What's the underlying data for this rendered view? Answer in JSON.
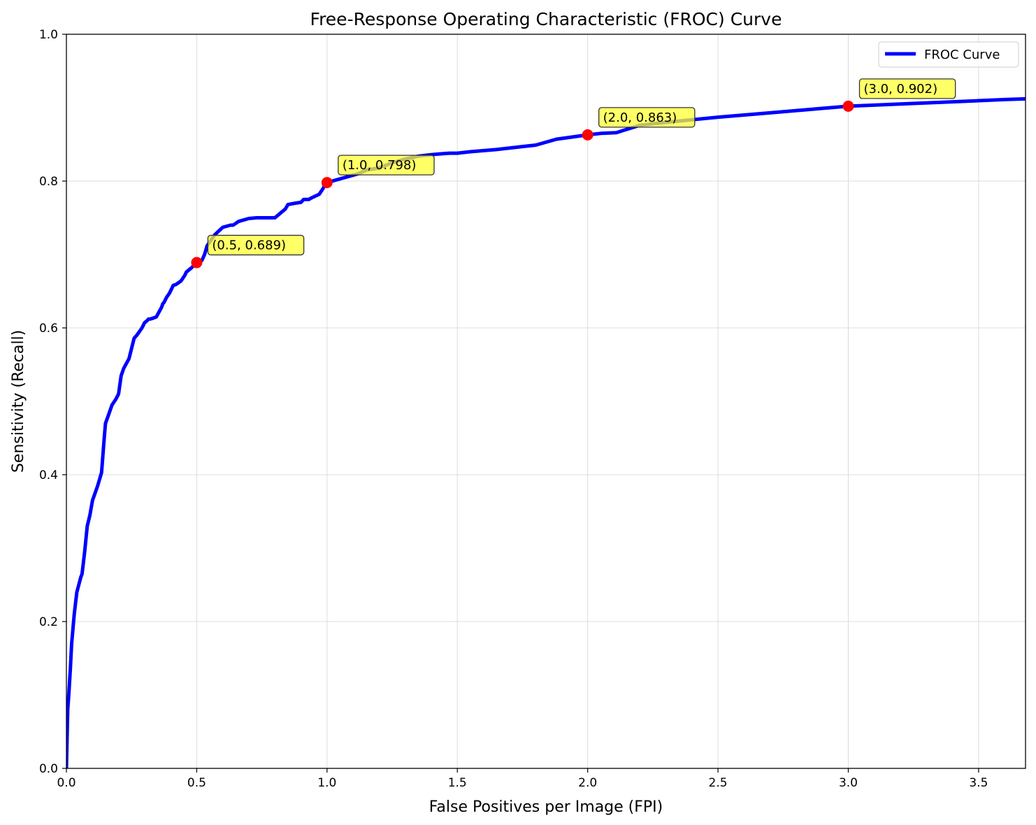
{
  "chart_data": {
    "type": "line",
    "title": "Free-Response Operating Characteristic (FROC) Curve",
    "xlabel": "False Positives per Image (FPI)",
    "ylabel": "Sensitivity (Recall)",
    "xlim": [
      0,
      3.68
    ],
    "ylim": [
      0,
      1.0
    ],
    "xticks": [
      0.0,
      0.5,
      1.0,
      1.5,
      2.0,
      2.5,
      3.0,
      3.5
    ],
    "xtick_labels": [
      "0.0",
      "0.5",
      "1.0",
      "1.5",
      "2.0",
      "2.5",
      "3.0",
      "3.5"
    ],
    "yticks": [
      0.0,
      0.2,
      0.4,
      0.6,
      0.8,
      1.0
    ],
    "ytick_labels": [
      "0.0",
      "0.2",
      "0.4",
      "0.6",
      "0.8",
      "1.0"
    ],
    "grid": true,
    "legend_position": "top-right",
    "series": [
      {
        "name": "FROC Curve",
        "color": "#0000ff",
        "x": [
          0.0,
          0.005,
          0.01,
          0.015,
          0.02,
          0.03,
          0.04,
          0.055,
          0.06,
          0.07,
          0.08,
          0.09,
          0.1,
          0.12,
          0.135,
          0.145,
          0.15,
          0.16,
          0.175,
          0.19,
          0.2,
          0.21,
          0.22,
          0.24,
          0.25,
          0.26,
          0.27,
          0.28,
          0.29,
          0.3,
          0.31,
          0.315,
          0.32,
          0.33,
          0.345,
          0.365,
          0.37,
          0.375,
          0.385,
          0.395,
          0.41,
          0.42,
          0.44,
          0.455,
          0.46,
          0.48,
          0.5,
          0.52,
          0.53,
          0.54,
          0.55,
          0.57,
          0.6,
          0.63,
          0.64,
          0.66,
          0.67,
          0.7,
          0.73,
          0.77,
          0.8,
          0.82,
          0.84,
          0.85,
          0.88,
          0.9,
          0.91,
          0.93,
          0.94,
          0.97,
          0.985,
          0.99,
          1.0,
          1.05,
          1.08,
          1.12,
          1.15,
          1.2,
          1.25,
          1.3,
          1.35,
          1.4,
          1.43,
          1.47,
          1.5,
          1.55,
          1.65,
          1.75,
          1.8,
          1.88,
          2.0,
          2.05,
          2.11,
          2.2,
          2.3,
          2.5,
          2.7,
          2.9,
          3.0,
          3.2,
          3.4,
          3.6,
          3.68
        ],
        "y": [
          0.0,
          0.08,
          0.105,
          0.135,
          0.17,
          0.21,
          0.24,
          0.26,
          0.265,
          0.295,
          0.33,
          0.345,
          0.365,
          0.385,
          0.403,
          0.45,
          0.47,
          0.48,
          0.495,
          0.503,
          0.51,
          0.535,
          0.545,
          0.558,
          0.572,
          0.586,
          0.59,
          0.595,
          0.6,
          0.607,
          0.61,
          0.612,
          0.612,
          0.613,
          0.615,
          0.628,
          0.633,
          0.635,
          0.642,
          0.647,
          0.658,
          0.659,
          0.664,
          0.672,
          0.676,
          0.682,
          0.689,
          0.692,
          0.7,
          0.712,
          0.717,
          0.727,
          0.737,
          0.74,
          0.74,
          0.745,
          0.746,
          0.749,
          0.75,
          0.75,
          0.75,
          0.756,
          0.762,
          0.768,
          0.77,
          0.771,
          0.775,
          0.775,
          0.777,
          0.782,
          0.79,
          0.794,
          0.798,
          0.803,
          0.806,
          0.81,
          0.815,
          0.818,
          0.825,
          0.83,
          0.834,
          0.836,
          0.837,
          0.838,
          0.838,
          0.84,
          0.843,
          0.847,
          0.849,
          0.857,
          0.863,
          0.865,
          0.866,
          0.876,
          0.88,
          0.887,
          0.893,
          0.899,
          0.902,
          0.905,
          0.908,
          0.911,
          0.912
        ]
      }
    ],
    "highlight_points": [
      {
        "x": 0.5,
        "y": 0.689,
        "label": "(0.5, 0.689)"
      },
      {
        "x": 1.0,
        "y": 0.798,
        "label": "(1.0, 0.798)"
      },
      {
        "x": 2.0,
        "y": 0.863,
        "label": "(2.0, 0.863)"
      },
      {
        "x": 3.0,
        "y": 0.902,
        "label": "(3.0, 0.902)"
      }
    ],
    "colors": {
      "line": "#0000ff",
      "points": "#ff0000",
      "annotation_fill": "#ffff33",
      "grid": "#dcdcdc"
    }
  }
}
